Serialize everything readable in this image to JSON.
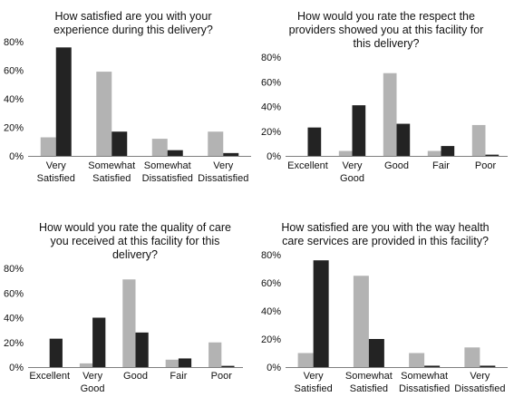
{
  "colors": {
    "series_light": "#b3b3b3",
    "series_dark": "#232323",
    "axis": "#7f7f7f"
  },
  "chart_data": [
    {
      "type": "bar",
      "title": [
        "How satisfied are you with your",
        "experience during this delivery?"
      ],
      "categories": [
        [
          "Very",
          "Satisfied"
        ],
        [
          "Somewhat",
          "Satisfied"
        ],
        [
          "Somewhat",
          "Dissatisfied"
        ],
        [
          "Very",
          "Dissatisfied"
        ]
      ],
      "yticks": [
        "0%",
        "20%",
        "40%",
        "60%",
        "80%"
      ],
      "ylim": [
        0,
        80
      ],
      "grid": false,
      "series": [
        {
          "values": [
            13,
            59,
            12,
            17
          ]
        },
        {
          "values": [
            76,
            17,
            4,
            2
          ]
        }
      ]
    },
    {
      "type": "bar",
      "title": [
        "How would you rate the respect the",
        "providers showed you at this facility for",
        "this delivery?"
      ],
      "categories": [
        [
          "Excellent"
        ],
        [
          "Very",
          "Good"
        ],
        [
          "Good"
        ],
        [
          "Fair"
        ],
        [
          "Poor"
        ]
      ],
      "yticks": [
        "0%",
        "20%",
        "40%",
        "60%",
        "80%"
      ],
      "ylim": [
        0,
        80
      ],
      "grid": false,
      "series": [
        {
          "values": [
            0,
            4,
            67,
            4,
            25
          ]
        },
        {
          "values": [
            23,
            41,
            26,
            8,
            1
          ]
        }
      ]
    },
    {
      "type": "bar",
      "title": [
        "How would you rate the quality of care",
        "you received at this facility for this",
        "delivery?"
      ],
      "categories": [
        [
          "Excellent"
        ],
        [
          "Very",
          "Good"
        ],
        [
          "Good"
        ],
        [
          "Fair"
        ],
        [
          "Poor"
        ]
      ],
      "yticks": [
        "0%",
        "20%",
        "40%",
        "60%",
        "80%"
      ],
      "ylim": [
        0,
        80
      ],
      "grid": false,
      "series": [
        {
          "values": [
            0,
            3,
            71,
            6,
            20
          ]
        },
        {
          "values": [
            23,
            40,
            28,
            7,
            1
          ]
        }
      ]
    },
    {
      "type": "bar",
      "title": [
        "How satisfied are you with the way health",
        "care services are provided in this facility?"
      ],
      "categories": [
        [
          "Very",
          "Satisfied"
        ],
        [
          "Somewhat",
          "Satisfied"
        ],
        [
          "Somewhat",
          "Dissatisfied"
        ],
        [
          "Very",
          "Dissatisfied"
        ]
      ],
      "yticks": [
        "0%",
        "20%",
        "40%",
        "60%",
        "80%"
      ],
      "ylim": [
        0,
        80
      ],
      "grid": false,
      "series": [
        {
          "values": [
            10,
            65,
            10,
            14
          ]
        },
        {
          "values": [
            76,
            20,
            1,
            1
          ]
        }
      ]
    }
  ]
}
